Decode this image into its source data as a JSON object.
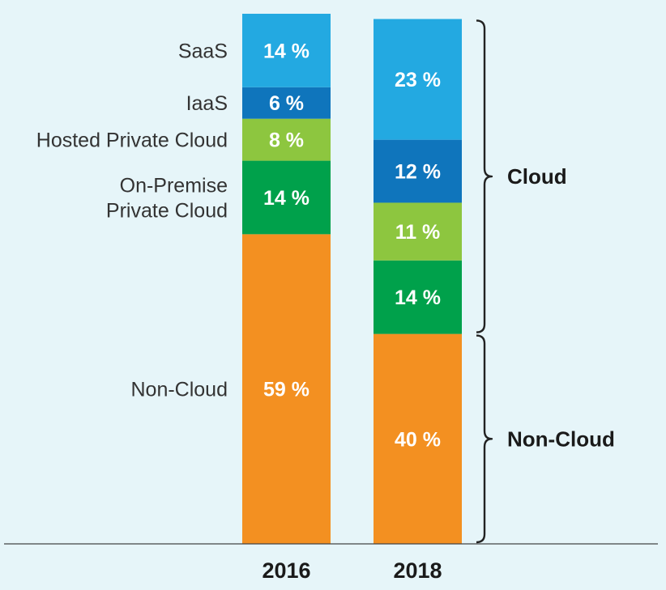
{
  "chart_data": {
    "type": "bar",
    "stacked": true,
    "categories": [
      "2016",
      "2018"
    ],
    "series": [
      {
        "name": "Non-Cloud",
        "values": [
          59,
          40
        ],
        "labels": [
          "59 %",
          "40 %"
        ],
        "color": "#f39021"
      },
      {
        "name": "On-Premise Private Cloud",
        "values": [
          14,
          14
        ],
        "labels": [
          "14 %",
          "14 %"
        ],
        "color": "#00a14b"
      },
      {
        "name": "Hosted Private Cloud",
        "values": [
          8,
          11
        ],
        "labels": [
          "8 %",
          "11 %"
        ],
        "color": "#8dc63f"
      },
      {
        "name": "IaaS",
        "values": [
          6,
          12
        ],
        "labels": [
          "6 %",
          "12 %"
        ],
        "color": "#0f75bc"
      },
      {
        "name": "SaaS",
        "values": [
          14,
          23
        ],
        "labels": [
          "14 %",
          "23 %"
        ],
        "color": "#23a9e1"
      }
    ],
    "category_labels": [
      {
        "series": "SaaS",
        "lines": [
          "SaaS"
        ]
      },
      {
        "series": "IaaS",
        "lines": [
          "IaaS"
        ]
      },
      {
        "series": "Hosted Private Cloud",
        "lines": [
          "Hosted Private Cloud"
        ]
      },
      {
        "series": "On-Premise Private Cloud",
        "lines": [
          "On-Premise",
          "Private Cloud"
        ]
      },
      {
        "series": "Non-Cloud",
        "lines": [
          "Non-Cloud"
        ]
      }
    ],
    "groups": [
      {
        "label": "Cloud",
        "from": "On-Premise Private Cloud",
        "to": "SaaS"
      },
      {
        "label": "Non-Cloud",
        "from": "Non-Cloud",
        "to": "Non-Cloud"
      }
    ],
    "ylim": [
      0,
      101
    ],
    "title": "",
    "xlabel": "",
    "ylabel": "",
    "grid": false,
    "legend": "none"
  }
}
